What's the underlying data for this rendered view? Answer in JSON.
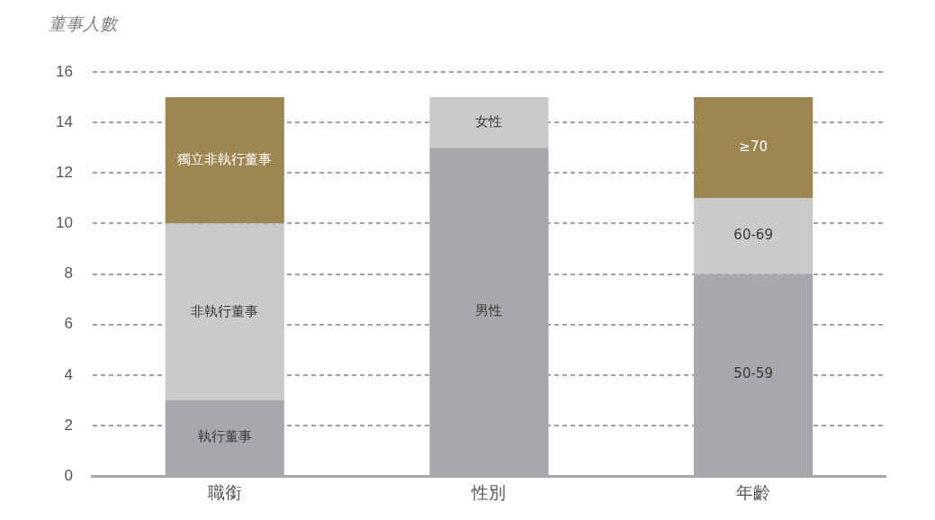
{
  "chart_data": {
    "type": "bar",
    "stacked": true,
    "ylabel": "董事人數",
    "categories": [
      "職銜",
      "性別",
      "年齡"
    ],
    "series": [
      {
        "name": "執行董事",
        "color": "#a7a8ab",
        "values": [
          3,
          null,
          null
        ]
      },
      {
        "name": "非執行董事",
        "color": "#c9cacc",
        "values": [
          7,
          null,
          null
        ]
      },
      {
        "name": "獨立非執行董事",
        "color": "#9e8651",
        "values": [
          5,
          null,
          null
        ]
      },
      {
        "name": "男性",
        "color": "#a7a8ab",
        "values": [
          null,
          13,
          null
        ]
      },
      {
        "name": "女性",
        "color": "#c9cacc",
        "values": [
          null,
          2,
          null
        ]
      },
      {
        "name": "50-59",
        "color": "#a7a8ab",
        "values": [
          null,
          null,
          8
        ]
      },
      {
        "name": "60-69",
        "color": "#c9cacc",
        "values": [
          null,
          null,
          3
        ]
      },
      {
        "name": "≥70",
        "color": "#9e8651",
        "values": [
          null,
          null,
          4
        ]
      }
    ],
    "ylim": [
      0,
      16
    ],
    "yticks": [
      0,
      2,
      4,
      6,
      8,
      10,
      12,
      14,
      16
    ],
    "grid": "y",
    "legend": false
  }
}
